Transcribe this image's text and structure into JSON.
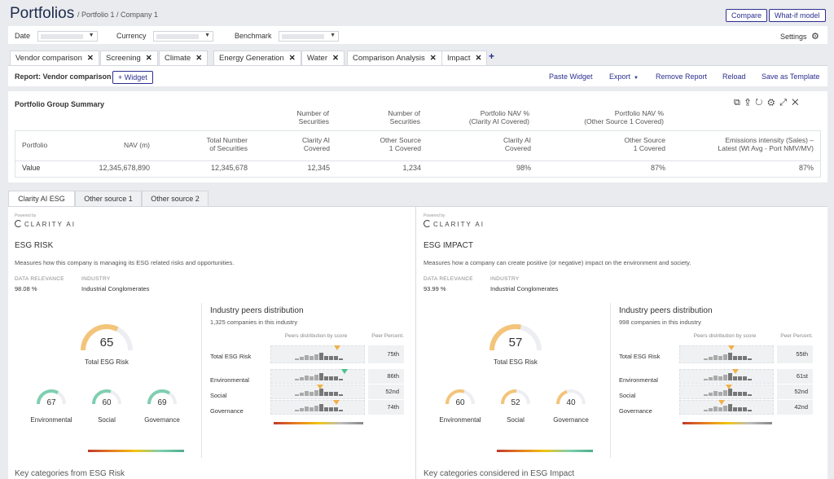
{
  "header": {
    "title": "Portfolios",
    "breadcrumb": "/ Portfolio 1 / Company 1",
    "compare": "Compare",
    "whatif": "What-if model"
  },
  "filters": {
    "date": "Date",
    "currency": "Currency",
    "benchmark": "Benchmark",
    "settings": "Settings"
  },
  "tabs": [
    {
      "label": "Vendor comparison"
    },
    {
      "label": "Screening"
    },
    {
      "label": "Climate"
    },
    {
      "label": "Energy Generation"
    },
    {
      "label": "Water"
    },
    {
      "label": "Comparison Analysis"
    },
    {
      "label": "Impact"
    }
  ],
  "toolbar": {
    "report": "Report: Vendor comparison",
    "widget": "+ Widget",
    "paste": "Paste Widget",
    "export": "Export",
    "remove": "Remove Report",
    "reload": "Reload",
    "save": "Save as Template"
  },
  "summary": {
    "title": "Portfolio Group Summary",
    "group_headers": [
      "Number of\nSecurities",
      "Number of\nSecurities",
      "Portfolio NAV %\n(Clarity AI Covered)",
      "Portfolio NAV %\n(Other Source 1 Covered)"
    ],
    "columns": [
      "Portfolio",
      "NAV (m)",
      "Total Number\nof Securities",
      "Clarity AI\nCovered",
      "Other Source\n1 Covered",
      "Clarity AI\nCovered",
      "Other Source\n1 Covered",
      "Emissions intensity (Sales) –\nLatest (Wt Avg - Port NMV/MV)"
    ],
    "row": [
      "Value",
      "12,345,678,890",
      "12,345,678",
      "12,345",
      "1,234",
      "98%",
      "87%",
      "87%"
    ]
  },
  "source_tabs": [
    "Clarity AI ESG",
    "Other source 1",
    "Other source 2"
  ],
  "left": {
    "powered": "Powered by",
    "brand": "CLARITY AI",
    "title": "ESG RISK",
    "desc": "Measures how this company is managing its ESG related risks and opportunities.",
    "relevance_label": "DATA RELEVANCE",
    "relevance": "98.08 %",
    "industry_label": "INDUSTRY",
    "industry": "Industrial Conglomerates",
    "main_score": "65",
    "main_label": "Total ESG Risk",
    "subs": [
      {
        "score": "67",
        "label": "Environmental"
      },
      {
        "score": "60",
        "label": "Social"
      },
      {
        "score": "69",
        "label": "Governance"
      }
    ],
    "peers_title": "Industry peers distribution",
    "peers_count": "1,325 companies in this industry",
    "dist_label": "Peers distribution by score",
    "pct_label": "Peer Percent.",
    "rows": [
      {
        "label": "Total ESG Risk",
        "pct": "75th"
      },
      {
        "label": "Environmental",
        "pct": "86th"
      },
      {
        "label": "Social",
        "pct": "52nd"
      },
      {
        "label": "Governance",
        "pct": "74th"
      }
    ],
    "footer": "Key categories from ESG Risk"
  },
  "right": {
    "powered": "Powered by",
    "brand": "CLARITY AI",
    "title": "ESG IMPACT",
    "desc": "Measures how a company can create positive (or negative) impact on the environment and society.",
    "relevance_label": "DATA RELEVANCE",
    "relevance": "93.99 %",
    "industry_label": "INDUSTRY",
    "industry": "Industrial Conglomerates",
    "main_score": "57",
    "main_label": "Total ESG Risk",
    "subs": [
      {
        "score": "60",
        "label": "Environmental"
      },
      {
        "score": "52",
        "label": "Social"
      },
      {
        "score": "40",
        "label": "Governance"
      }
    ],
    "peers_title": "Industry peers distribution",
    "peers_count": "998 companies in this industry",
    "dist_label": "Peers distribution by score",
    "pct_label": "Peer Percent.",
    "rows": [
      {
        "label": "Total ESG Risk",
        "pct": "55th"
      },
      {
        "label": "Environmental",
        "pct": "61st"
      },
      {
        "label": "Social",
        "pct": "52nd"
      },
      {
        "label": "Governance",
        "pct": "42nd"
      }
    ],
    "footer": "Key categories considered in ESG Impact"
  },
  "colors": {
    "accent": "#2b2f8e",
    "gauge_main": "#f3c47a",
    "gauge_green": "#7fcfb0",
    "marker_orange": "#f0b04a",
    "marker_green": "#4cbf8a"
  }
}
